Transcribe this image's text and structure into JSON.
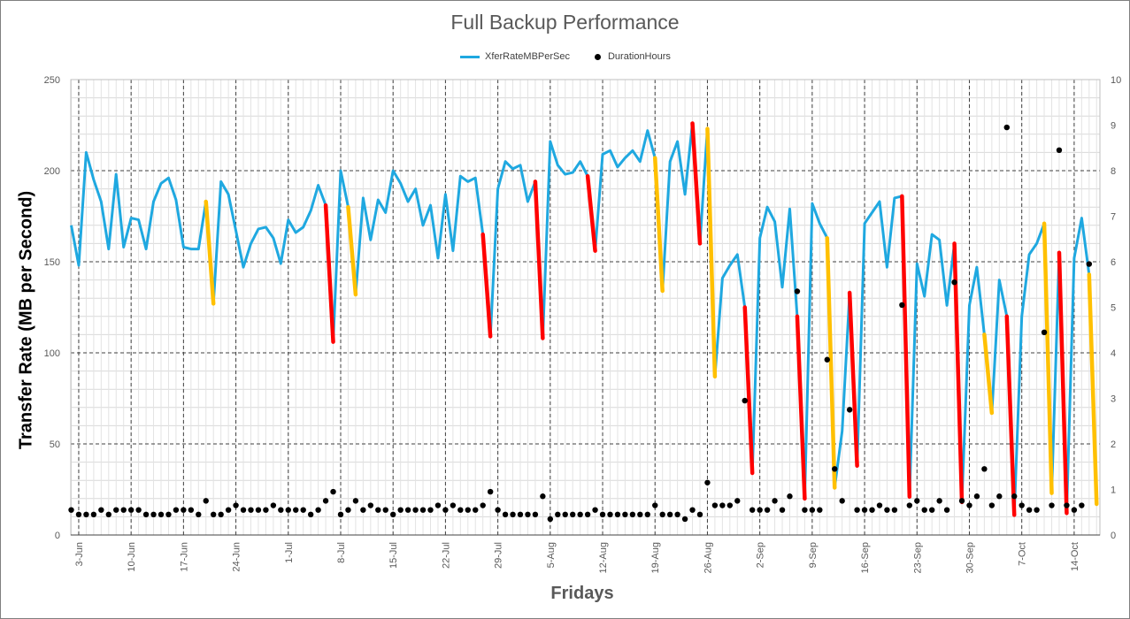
{
  "chart_data": {
    "type": "line",
    "title": "Full Backup Performance",
    "xlabel": "Fridays",
    "ylabel": "Transfer Rate (MB per Second)",
    "ylim": [
      0,
      250
    ],
    "y2lim": [
      0,
      10
    ],
    "yticks": [
      0,
      50,
      100,
      150,
      200,
      250
    ],
    "y2ticks": [
      0,
      1,
      2,
      3,
      4,
      5,
      6,
      7,
      8,
      9,
      10
    ],
    "x_tick_labels": [
      "3-Jun",
      "10-Jun",
      "17-Jun",
      "24-Jun",
      "1-Jul",
      "8-Jul",
      "15-Jul",
      "22-Jul",
      "29-Jul",
      "5-Aug",
      "12-Aug",
      "19-Aug",
      "26-Aug",
      "2-Sep",
      "9-Sep",
      "16-Sep",
      "23-Sep",
      "30-Sep",
      "7-Oct",
      "14-Oct"
    ],
    "grid": true,
    "legend_position": "top-center",
    "series": [
      {
        "name": "XferRateMBPerSec",
        "axis": "left",
        "color": "#1fa8e0",
        "values": [
          170,
          148,
          210,
          195,
          183,
          157,
          198,
          158,
          174,
          173,
          157,
          183,
          193,
          196,
          184,
          158,
          157,
          157,
          183,
          127,
          194,
          187,
          167,
          147,
          160,
          168,
          169,
          163,
          149,
          173,
          166,
          169,
          178,
          192,
          181,
          106,
          200,
          180,
          132,
          185,
          162,
          184,
          177,
          200,
          193,
          183,
          190,
          170,
          181,
          152,
          187,
          156,
          197,
          194,
          196,
          165,
          109,
          190,
          205,
          201,
          203,
          183,
          194,
          108,
          216,
          203,
          198,
          199,
          205,
          197,
          156,
          209,
          211,
          202,
          207,
          211,
          205,
          222,
          207,
          134,
          205,
          216,
          187,
          226,
          160,
          223,
          87,
          141,
          148,
          154,
          125,
          34,
          163,
          180,
          172,
          136,
          179,
          120,
          20,
          182,
          171,
          163,
          26,
          57,
          133,
          38,
          171,
          177,
          183,
          147,
          185,
          186,
          21,
          149,
          131,
          165,
          162,
          126,
          160,
          18,
          126,
          147,
          110,
          67,
          140,
          120,
          11,
          120,
          154,
          160,
          171,
          23,
          155,
          12,
          152,
          174,
          143,
          17
        ]
      },
      {
        "name": "DurationHours",
        "axis": "right",
        "color": "#000000",
        "values": [
          0.55,
          0.45,
          0.45,
          0.45,
          0.55,
          0.45,
          0.55,
          0.55,
          0.55,
          0.55,
          0.45,
          0.45,
          0.45,
          0.45,
          0.55,
          0.55,
          0.55,
          0.45,
          0.75,
          0.45,
          0.45,
          0.55,
          0.65,
          0.55,
          0.55,
          0.55,
          0.55,
          0.65,
          0.55,
          0.55,
          0.55,
          0.55,
          0.45,
          0.55,
          0.75,
          0.95,
          0.45,
          0.55,
          0.75,
          0.55,
          0.65,
          0.55,
          0.55,
          0.45,
          0.55,
          0.55,
          0.55,
          0.55,
          0.55,
          0.65,
          0.55,
          0.65,
          0.55,
          0.55,
          0.55,
          0.65,
          0.95,
          0.55,
          0.45,
          0.45,
          0.45,
          0.45,
          0.45,
          0.85,
          0.35,
          0.45,
          0.45,
          0.45,
          0.45,
          0.45,
          0.55,
          0.45,
          0.45,
          0.45,
          0.45,
          0.45,
          0.45,
          0.45,
          0.65,
          0.45,
          0.45,
          0.45,
          0.35,
          0.55,
          0.45,
          1.15,
          0.65,
          0.65,
          0.65,
          0.75,
          2.95,
          0.55,
          0.55,
          0.55,
          0.75,
          0.55,
          0.85,
          5.35,
          0.55,
          0.55,
          0.55,
          3.85,
          1.45,
          0.75,
          2.75,
          0.55,
          0.55,
          0.55,
          0.65,
          0.55,
          0.55,
          5.05,
          0.65,
          0.75,
          0.55,
          0.55,
          0.75,
          0.55,
          5.55,
          0.75,
          0.65,
          0.85,
          1.45,
          0.65,
          0.85,
          8.95,
          0.85,
          0.65,
          0.55,
          0.55,
          4.45,
          0.65,
          8.45,
          0.65,
          0.55,
          0.65,
          5.95
        ]
      }
    ],
    "highlight_segments": [
      {
        "color": "#ff0000",
        "from_index": 34,
        "to_index": 35
      },
      {
        "color": "#ff0000",
        "from_index": 55,
        "to_index": 56
      },
      {
        "color": "#ff0000",
        "from_index": 62,
        "to_index": 63
      },
      {
        "color": "#ff0000",
        "from_index": 69,
        "to_index": 70
      },
      {
        "color": "#ff0000",
        "from_index": 83,
        "to_index": 84
      },
      {
        "color": "#ff0000",
        "from_index": 90,
        "to_index": 91
      },
      {
        "color": "#ff0000",
        "from_index": 97,
        "to_index": 98
      },
      {
        "color": "#ff0000",
        "from_index": 104,
        "to_index": 105
      },
      {
        "color": "#ff0000",
        "from_index": 111,
        "to_index": 112
      },
      {
        "color": "#ff0000",
        "from_index": 118,
        "to_index": 119
      },
      {
        "color": "#ff0000",
        "from_index": 125,
        "to_index": 126
      },
      {
        "color": "#ff0000",
        "from_index": 132,
        "to_index": 133
      },
      {
        "color": "#ffc000",
        "from_index": 18,
        "to_index": 19
      },
      {
        "color": "#ffc000",
        "from_index": 37,
        "to_index": 38
      },
      {
        "color": "#ffc000",
        "from_index": 78,
        "to_index": 79
      },
      {
        "color": "#ffc000",
        "from_index": 85,
        "to_index": 86
      },
      {
        "color": "#ffc000",
        "from_index": 101,
        "to_index": 102
      },
      {
        "color": "#ffc000",
        "from_index": 122,
        "to_index": 123
      },
      {
        "color": "#ffc000",
        "from_index": 130,
        "to_index": 131
      },
      {
        "color": "#ffc000",
        "from_index": 136,
        "to_index": 137
      }
    ]
  }
}
